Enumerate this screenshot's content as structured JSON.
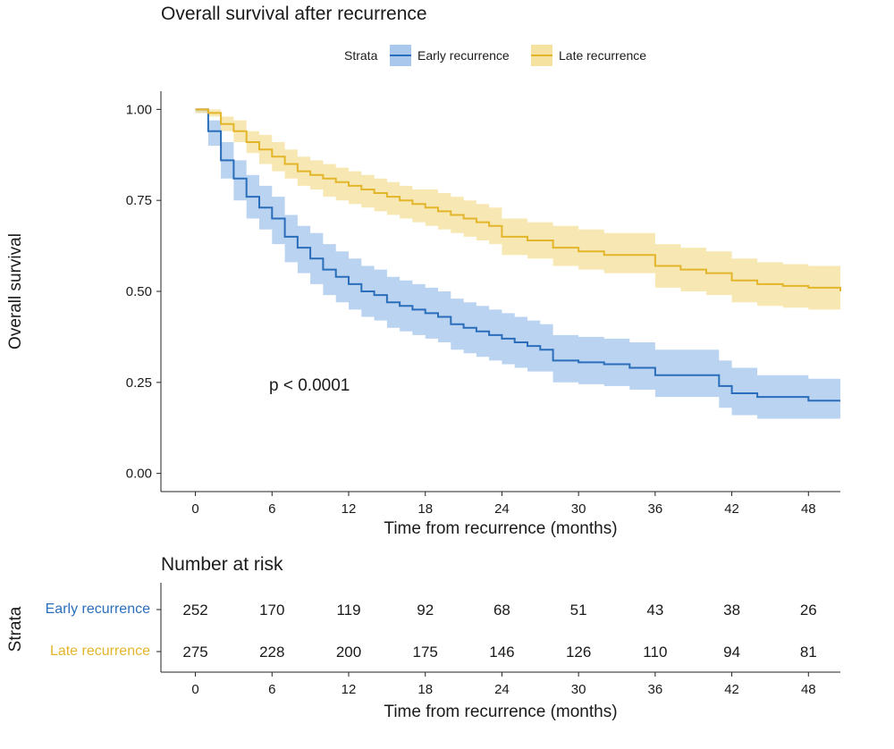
{
  "chart_data": [
    {
      "type": "line",
      "subtype": "kaplan-meier",
      "title": "Overall survival after recurrence",
      "xlabel": "Time from recurrence (months)",
      "ylabel": "Overall survival",
      "xlim": [
        -2.7,
        50.5
      ],
      "ylim": [
        -0.05,
        1.05
      ],
      "xticks": [
        "0",
        "6",
        "12",
        "18",
        "24",
        "30",
        "36",
        "42",
        "48"
      ],
      "yticks": [
        "0.00",
        "0.25",
        "0.50",
        "0.75",
        "1.00"
      ],
      "grid": false,
      "legend": {
        "title": "Strata",
        "position": "top",
        "entries": [
          "Early recurrence",
          "Late recurrence"
        ]
      },
      "annotation": "p < 0.0001",
      "series": [
        {
          "name": "Early recurrence",
          "color": "#2a6ebb",
          "band_color": "#a9c8ec",
          "x": [
            0,
            1,
            2,
            3,
            4,
            5,
            6,
            7,
            8,
            9,
            10,
            11,
            12,
            13,
            14,
            15,
            16,
            17,
            18,
            19,
            20,
            21,
            22,
            23,
            24,
            25,
            26,
            27,
            28,
            30,
            32,
            34,
            36,
            39,
            41,
            42,
            44,
            48,
            50.5
          ],
          "y": [
            1.0,
            0.94,
            0.86,
            0.81,
            0.76,
            0.73,
            0.7,
            0.65,
            0.62,
            0.59,
            0.56,
            0.54,
            0.52,
            0.5,
            0.49,
            0.47,
            0.46,
            0.45,
            0.44,
            0.43,
            0.41,
            0.4,
            0.39,
            0.38,
            0.37,
            0.36,
            0.35,
            0.34,
            0.31,
            0.305,
            0.3,
            0.29,
            0.27,
            0.27,
            0.24,
            0.22,
            0.21,
            0.2,
            0.2
          ],
          "lower": [
            0.99,
            0.9,
            0.81,
            0.75,
            0.7,
            0.67,
            0.63,
            0.58,
            0.55,
            0.52,
            0.49,
            0.47,
            0.45,
            0.43,
            0.42,
            0.4,
            0.39,
            0.38,
            0.37,
            0.36,
            0.34,
            0.33,
            0.32,
            0.31,
            0.3,
            0.29,
            0.28,
            0.28,
            0.25,
            0.245,
            0.24,
            0.23,
            0.21,
            0.21,
            0.18,
            0.16,
            0.15,
            0.15,
            0.15
          ],
          "upper": [
            1.0,
            0.97,
            0.91,
            0.86,
            0.82,
            0.79,
            0.76,
            0.71,
            0.68,
            0.66,
            0.63,
            0.61,
            0.59,
            0.57,
            0.56,
            0.54,
            0.53,
            0.52,
            0.51,
            0.5,
            0.48,
            0.47,
            0.46,
            0.45,
            0.44,
            0.43,
            0.42,
            0.41,
            0.38,
            0.375,
            0.37,
            0.36,
            0.34,
            0.34,
            0.31,
            0.29,
            0.27,
            0.26,
            0.26
          ]
        },
        {
          "name": "Late recurrence",
          "color": "#e3b52a",
          "band_color": "#f5e2a0",
          "x": [
            0,
            1,
            2,
            3,
            4,
            5,
            6,
            7,
            8,
            9,
            10,
            11,
            12,
            13,
            14,
            15,
            16,
            17,
            18,
            19,
            20,
            21,
            22,
            23,
            24,
            26,
            28,
            30,
            32,
            36,
            38,
            40,
            42,
            44,
            46,
            48,
            49,
            50.5
          ],
          "y": [
            1.0,
            0.99,
            0.96,
            0.94,
            0.91,
            0.89,
            0.87,
            0.85,
            0.83,
            0.82,
            0.81,
            0.8,
            0.79,
            0.78,
            0.77,
            0.76,
            0.75,
            0.74,
            0.73,
            0.72,
            0.71,
            0.7,
            0.69,
            0.68,
            0.65,
            0.64,
            0.62,
            0.61,
            0.6,
            0.57,
            0.56,
            0.55,
            0.53,
            0.52,
            0.515,
            0.51,
            0.51,
            0.5
          ],
          "lower": [
            0.99,
            0.98,
            0.94,
            0.91,
            0.88,
            0.85,
            0.83,
            0.81,
            0.79,
            0.78,
            0.76,
            0.75,
            0.74,
            0.73,
            0.72,
            0.71,
            0.7,
            0.69,
            0.68,
            0.67,
            0.66,
            0.65,
            0.64,
            0.63,
            0.6,
            0.59,
            0.57,
            0.56,
            0.55,
            0.51,
            0.5,
            0.49,
            0.47,
            0.46,
            0.455,
            0.45,
            0.45,
            0.44
          ],
          "upper": [
            1.0,
            1.0,
            0.98,
            0.97,
            0.94,
            0.93,
            0.91,
            0.89,
            0.87,
            0.86,
            0.85,
            0.84,
            0.83,
            0.82,
            0.81,
            0.8,
            0.79,
            0.78,
            0.78,
            0.77,
            0.76,
            0.75,
            0.74,
            0.73,
            0.7,
            0.69,
            0.68,
            0.67,
            0.66,
            0.63,
            0.62,
            0.61,
            0.59,
            0.58,
            0.575,
            0.57,
            0.57,
            0.56
          ]
        }
      ]
    },
    {
      "type": "table",
      "title": "Number at risk",
      "xlabel": "Time from recurrence (months)",
      "ylabel": "Strata",
      "xticks": [
        "0",
        "6",
        "12",
        "18",
        "24",
        "30",
        "36",
        "42",
        "48"
      ],
      "columns": [
        0,
        6,
        12,
        18,
        24,
        30,
        36,
        42,
        48
      ],
      "rows": [
        {
          "label": "Early recurrence",
          "color": "#2a6ebb",
          "values": [
            "252",
            "170",
            "119",
            "92",
            "68",
            "51",
            "43",
            "38",
            "26"
          ]
        },
        {
          "label": "Late recurrence",
          "color": "#e3b52a",
          "values": [
            "275",
            "228",
            "200",
            "175",
            "146",
            "126",
            "110",
            "94",
            "81"
          ]
        }
      ]
    }
  ]
}
